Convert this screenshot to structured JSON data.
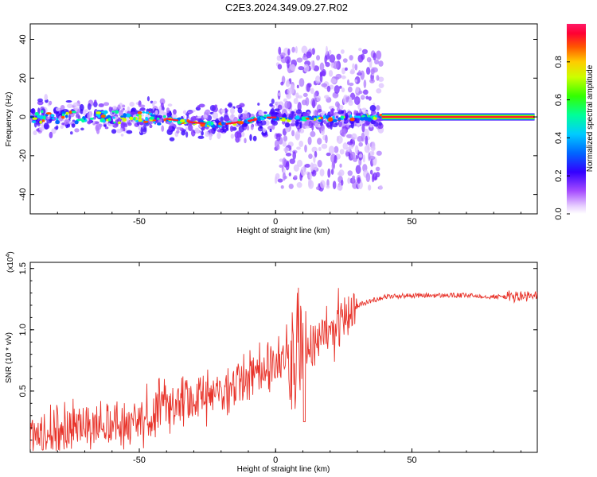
{
  "figure_title": "C2E3.2024.349.09.27.R02",
  "chart_data": [
    {
      "type": "heatmap",
      "title": "",
      "xlabel": "Height of straight line (km)",
      "ylabel": "Frequency (Hz)",
      "xlim": [
        -90,
        96
      ],
      "ylim": [
        -50,
        48
      ],
      "xticks": [
        -50,
        0,
        50
      ],
      "yticks": [
        -40,
        -20,
        0,
        20,
        40
      ],
      "colorbar": {
        "label": "Normalized spectral amplitude",
        "range": [
          0,
          1
        ],
        "ticks": [
          "0.0",
          "0.2",
          "0.4",
          "0.6",
          "0.8"
        ]
      },
      "ridge": {
        "description_points_x": [
          -90,
          -60,
          -40,
          -30,
          -20,
          -10,
          -2,
          5,
          20,
          40,
          96
        ],
        "description_points_y": [
          0,
          0,
          -1,
          -3,
          -4,
          -2,
          0,
          -1,
          -1,
          0,
          0
        ],
        "tone_start_x": 39,
        "tone_end_x": 95,
        "tone_freq": 0,
        "broadband_start_x": 0,
        "broadband_end_x": 39,
        "broadband_freq_range": [
          -37,
          35
        ]
      }
    },
    {
      "type": "line",
      "title": "",
      "xlabel": "Height of straight line (km)",
      "ylabel": "SNR (10 * v/v)",
      "multiplier_label": "(x10",
      "multiplier_exp": "4",
      "multiplier_close": ")",
      "xlim": [
        -90,
        96
      ],
      "ylim": [
        0,
        1.55
      ],
      "xticks": [
        -50,
        0,
        50
      ],
      "yticks": [
        "0.5",
        "1.0",
        "1.5"
      ],
      "ytick_values": [
        0.5,
        1.0,
        1.5
      ],
      "series": [
        {
          "color": "#e8332a",
          "trend_x": [
            -90,
            -80,
            -70,
            -60,
            -50,
            -40,
            -30,
            -20,
            -10,
            0,
            10,
            20,
            30,
            40,
            50,
            60,
            70,
            80,
            90,
            96
          ],
          "trend_y": [
            0.12,
            0.18,
            0.22,
            0.24,
            0.26,
            0.35,
            0.45,
            0.5,
            0.62,
            0.75,
            0.88,
            1.0,
            1.2,
            1.27,
            1.28,
            1.28,
            1.28,
            1.27,
            1.27,
            1.27
          ]
        }
      ]
    }
  ]
}
